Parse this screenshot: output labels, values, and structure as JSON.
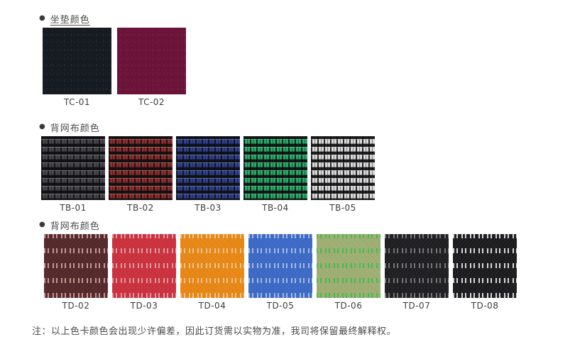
{
  "note": "注：以上色卡颜色会出现少许偏差，因此订货需以实物为准，我司将保留最终解释权。",
  "sections": [
    {
      "title": "坐垫颜色",
      "bullet": "●",
      "underline": true,
      "pattern": "solid",
      "swatches": [
        {
          "code": "TC-01",
          "base": "#161b21",
          "accent": "#2a3038"
        },
        {
          "code": "TC-02",
          "base": "#6b1339",
          "accent": "#7d2247"
        }
      ]
    },
    {
      "title": "背网布颜色",
      "bullet": "●",
      "underline": false,
      "pattern": "weave",
      "swatches": [
        {
          "code": "TB-01",
          "base": "#1c1c20",
          "accent": "#46464c"
        },
        {
          "code": "TB-02",
          "base": "#1a1618",
          "accent": "#8f2c2c"
        },
        {
          "code": "TB-03",
          "base": "#161a22",
          "accent": "#2e3f8f"
        },
        {
          "code": "TB-04",
          "base": "#12171a",
          "accent": "#22aa66"
        },
        {
          "code": "TB-05",
          "base": "#26262a",
          "accent": "#d9d9d9"
        }
      ]
    },
    {
      "title": "背网布颜色",
      "bullet": "●",
      "underline": false,
      "pattern": "mesh",
      "swatches": [
        {
          "code": "TD-02",
          "base": "#572a2c",
          "accent": "#c89d96"
        },
        {
          "code": "TD-03",
          "base": "#d0333f",
          "accent": "#e79ba4"
        },
        {
          "code": "TD-04",
          "base": "#ee8b16",
          "accent": "#f7c98b"
        },
        {
          "code": "TD-05",
          "base": "#3e6ccc",
          "accent": "#a9bfe9"
        },
        {
          "code": "TD-06",
          "base": "#a3b376",
          "accent": "#46c155"
        },
        {
          "code": "TD-07",
          "base": "#202023",
          "accent": "#77777c"
        },
        {
          "code": "TD-08",
          "base": "#1d1d20",
          "accent": "#dedee0"
        }
      ]
    }
  ]
}
